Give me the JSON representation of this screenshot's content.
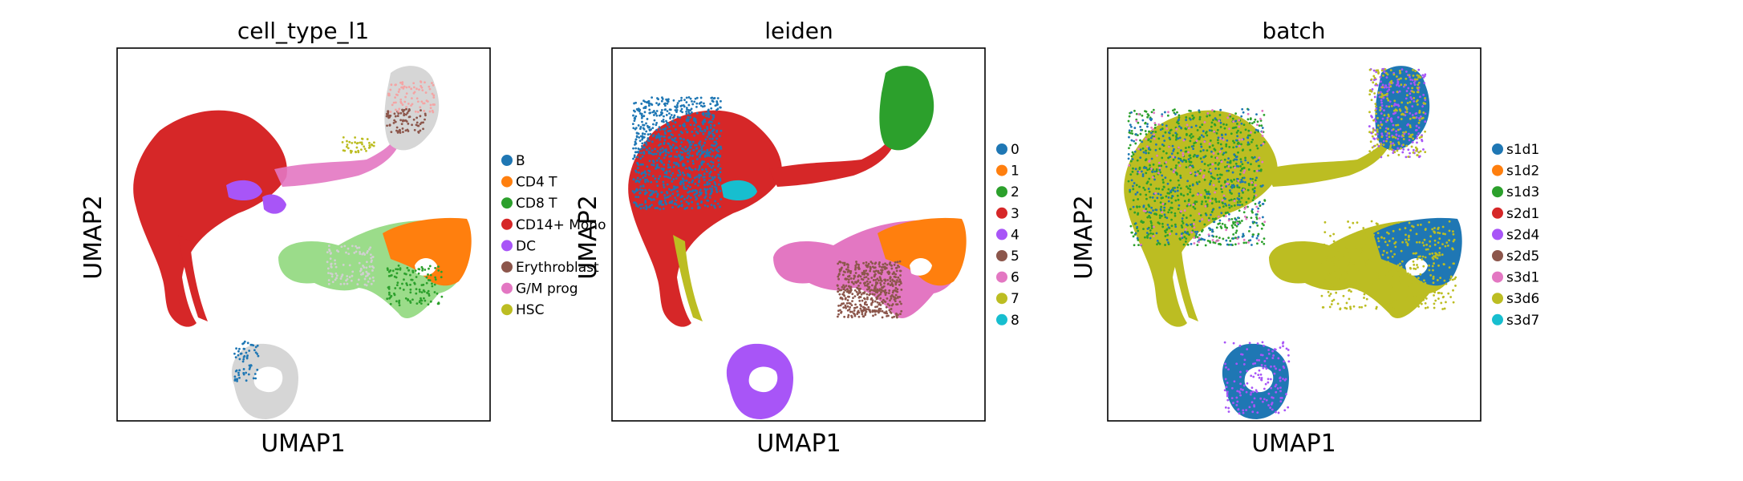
{
  "panels": [
    {
      "title": "cell_type_l1",
      "xlabel": "UMAP1",
      "ylabel": "UMAP2",
      "legend": [
        {
          "label": "B",
          "color": "#1f77b4"
        },
        {
          "label": "CD4 T",
          "color": "#ff7f0e"
        },
        {
          "label": "CD8 T",
          "color": "#2ca02c"
        },
        {
          "label": "CD14+ Mono",
          "color": "#d62728"
        },
        {
          "label": "DC",
          "color": "#a855f7"
        },
        {
          "label": "Erythroblast",
          "color": "#8c564b"
        },
        {
          "label": "G/M prog",
          "color": "#e377c2"
        },
        {
          "label": "HSC",
          "color": "#bcbd22"
        }
      ]
    },
    {
      "title": "leiden",
      "xlabel": "UMAP1",
      "ylabel": "UMAP2",
      "legend": [
        {
          "label": "0",
          "color": "#1f77b4"
        },
        {
          "label": "1",
          "color": "#ff7f0e"
        },
        {
          "label": "2",
          "color": "#2ca02c"
        },
        {
          "label": "3",
          "color": "#d62728"
        },
        {
          "label": "4",
          "color": "#a855f7"
        },
        {
          "label": "5",
          "color": "#8c564b"
        },
        {
          "label": "6",
          "color": "#e377c2"
        },
        {
          "label": "7",
          "color": "#bcbd22"
        },
        {
          "label": "8",
          "color": "#17becf"
        }
      ]
    },
    {
      "title": "batch",
      "xlabel": "UMAP1",
      "ylabel": "UMAP2",
      "legend": [
        {
          "label": "s1d1",
          "color": "#1f77b4"
        },
        {
          "label": "s1d2",
          "color": "#ff7f0e"
        },
        {
          "label": "s1d3",
          "color": "#2ca02c"
        },
        {
          "label": "s2d1",
          "color": "#d62728"
        },
        {
          "label": "s2d4",
          "color": "#a855f7"
        },
        {
          "label": "s2d5",
          "color": "#8c564b"
        },
        {
          "label": "s3d1",
          "color": "#e377c2"
        },
        {
          "label": "s3d6",
          "color": "#bcbd22"
        },
        {
          "label": "s3d7",
          "color": "#17becf"
        }
      ]
    }
  ],
  "chart_data": [
    {
      "type": "scatter",
      "title": "cell_type_l1",
      "xlabel": "UMAP1",
      "ylabel": "UMAP2",
      "color_by": "cell_type_l1",
      "categories": [
        "B",
        "CD4 T",
        "CD8 T",
        "CD14+ Mono",
        "DC",
        "Erythroblast",
        "G/M prog",
        "HSC"
      ],
      "ticks": "none",
      "legend_position": "right"
    },
    {
      "type": "scatter",
      "title": "leiden",
      "xlabel": "UMAP1",
      "ylabel": "UMAP2",
      "color_by": "leiden",
      "categories": [
        "0",
        "1",
        "2",
        "3",
        "4",
        "5",
        "6",
        "7",
        "8"
      ],
      "ticks": "none",
      "legend_position": "right"
    },
    {
      "type": "scatter",
      "title": "batch",
      "xlabel": "UMAP1",
      "ylabel": "UMAP2",
      "color_by": "batch",
      "categories": [
        "s1d1",
        "s1d2",
        "s1d3",
        "s2d1",
        "s2d4",
        "s2d5",
        "s3d1",
        "s3d6",
        "s3d7"
      ],
      "ticks": "none",
      "legend_position": "right"
    }
  ]
}
